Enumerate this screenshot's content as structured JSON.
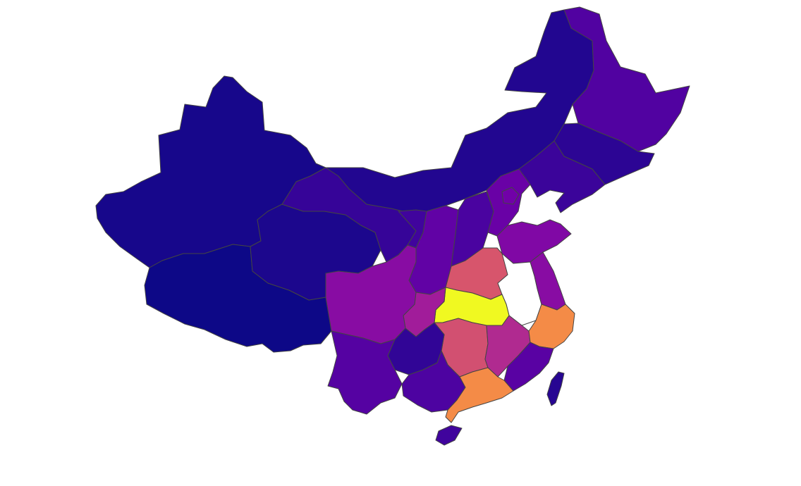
{
  "map": {
    "type": "choropleth",
    "colorscale": [
      "#0d0887",
      "#46039f",
      "#7201a8",
      "#9c179e",
      "#bd3786",
      "#d8576b",
      "#ed7953",
      "#fb9f3a",
      "#fdca26",
      "#f0f921"
    ],
    "no_data_color": "#ffffff",
    "regions": [
      {
        "id": "xinjiang",
        "level": 0.02
      },
      {
        "id": "tibet",
        "level": 0.0
      },
      {
        "id": "qinghai",
        "level": 0.03
      },
      {
        "id": "gansu",
        "level": 0.08
      },
      {
        "id": "inner-mongolia",
        "level": 0.04
      },
      {
        "id": "heilongjiang",
        "level": 0.14
      },
      {
        "id": "jilin",
        "level": 0.06
      },
      {
        "id": "liaoning",
        "level": 0.09
      },
      {
        "id": "ningxia",
        "level": 0.1
      },
      {
        "id": "shaanxi",
        "level": 0.18
      },
      {
        "id": "shanxi",
        "level": 0.12
      },
      {
        "id": "hebei",
        "level": 0.2
      },
      {
        "id": "beijing",
        "level": 0.22
      },
      {
        "id": "shandong",
        "level": 0.26
      },
      {
        "id": "henan",
        "level": 0.55
      },
      {
        "id": "anhui",
        "level": null
      },
      {
        "id": "jiangsu",
        "level": 0.28
      },
      {
        "id": "hubei",
        "level": 1.0
      },
      {
        "id": "sichuan",
        "level": 0.28
      },
      {
        "id": "chongqing",
        "level": 0.35
      },
      {
        "id": "hunan",
        "level": 0.53
      },
      {
        "id": "jiangxi",
        "level": 0.4
      },
      {
        "id": "zhejiang",
        "level": 0.72
      },
      {
        "id": "fujian",
        "level": 0.16
      },
      {
        "id": "guizhou",
        "level": 0.07
      },
      {
        "id": "yunnan",
        "level": 0.15
      },
      {
        "id": "guangxi",
        "level": 0.13
      },
      {
        "id": "guangdong",
        "level": 0.72
      },
      {
        "id": "hainan",
        "level": 0.1
      },
      {
        "id": "taiwan",
        "level": 0.05
      }
    ]
  }
}
